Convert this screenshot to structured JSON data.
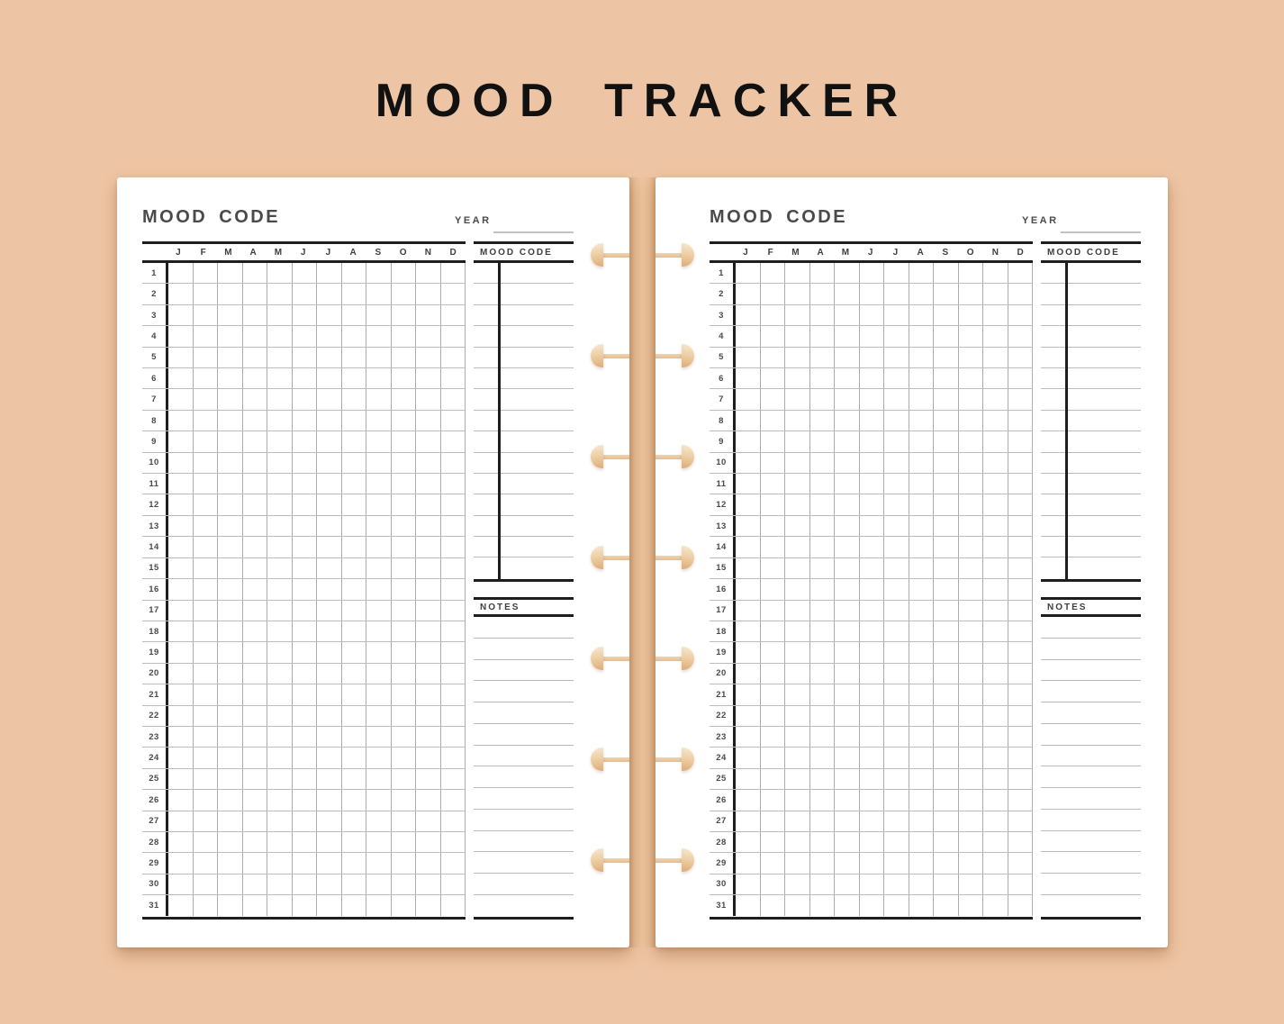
{
  "title": "MOOD TRACKER",
  "page": {
    "heading": "MOOD CODE",
    "year_label": "YEAR",
    "months": [
      "J",
      "F",
      "M",
      "A",
      "M",
      "J",
      "J",
      "A",
      "S",
      "O",
      "N",
      "D"
    ],
    "days": [
      "1",
      "2",
      "3",
      "4",
      "5",
      "6",
      "7",
      "8",
      "9",
      "10",
      "11",
      "12",
      "13",
      "14",
      "15",
      "16",
      "17",
      "18",
      "19",
      "20",
      "21",
      "22",
      "23",
      "24",
      "25",
      "26",
      "27",
      "28",
      "29",
      "30",
      "31"
    ],
    "sidebar": {
      "mood_code_title": "MOOD CODE",
      "notes_title": "NOTES",
      "mood_rows": 15,
      "note_lines": 14
    }
  },
  "binding": {
    "disc_count": 7,
    "disc_color_light": "#f6e6cc",
    "disc_color_dark": "#dfae7e"
  },
  "colors": {
    "background": "#eec5a4",
    "page": "#ffffff",
    "title_text": "#111111",
    "heading_text": "#4a4a4a",
    "grid_text": "#3e3e3e",
    "line_dark": "#1e1e1e",
    "line_gray": "#bcbcbc",
    "year_underline": "#c3c3c3"
  }
}
